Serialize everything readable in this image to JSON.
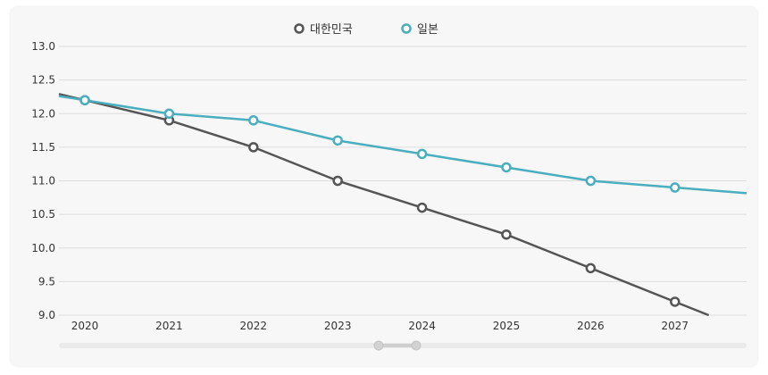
{
  "chart_data": {
    "type": "line",
    "title": "",
    "xlabel": "",
    "ylabel": "",
    "x": [
      "2020",
      "2021",
      "2022",
      "2023",
      "2024",
      "2025",
      "2026",
      "2027"
    ],
    "ylim": [
      9.0,
      13.0
    ],
    "yticks": [
      "9.0",
      "9.5",
      "10.0",
      "10.5",
      "11.0",
      "11.5",
      "12.0",
      "12.5",
      "13.0"
    ],
    "grid": true,
    "legend_position": "top",
    "series": [
      {
        "name": "대한민국",
        "color": "#555555",
        "values": [
          12.2,
          11.9,
          11.5,
          11.0,
          10.6,
          10.2,
          9.7,
          9.2
        ]
      },
      {
        "name": "일본",
        "color": "#4aaebf",
        "values": [
          12.2,
          12.0,
          11.9,
          11.6,
          11.4,
          11.2,
          11.0,
          10.9
        ]
      }
    ]
  }
}
